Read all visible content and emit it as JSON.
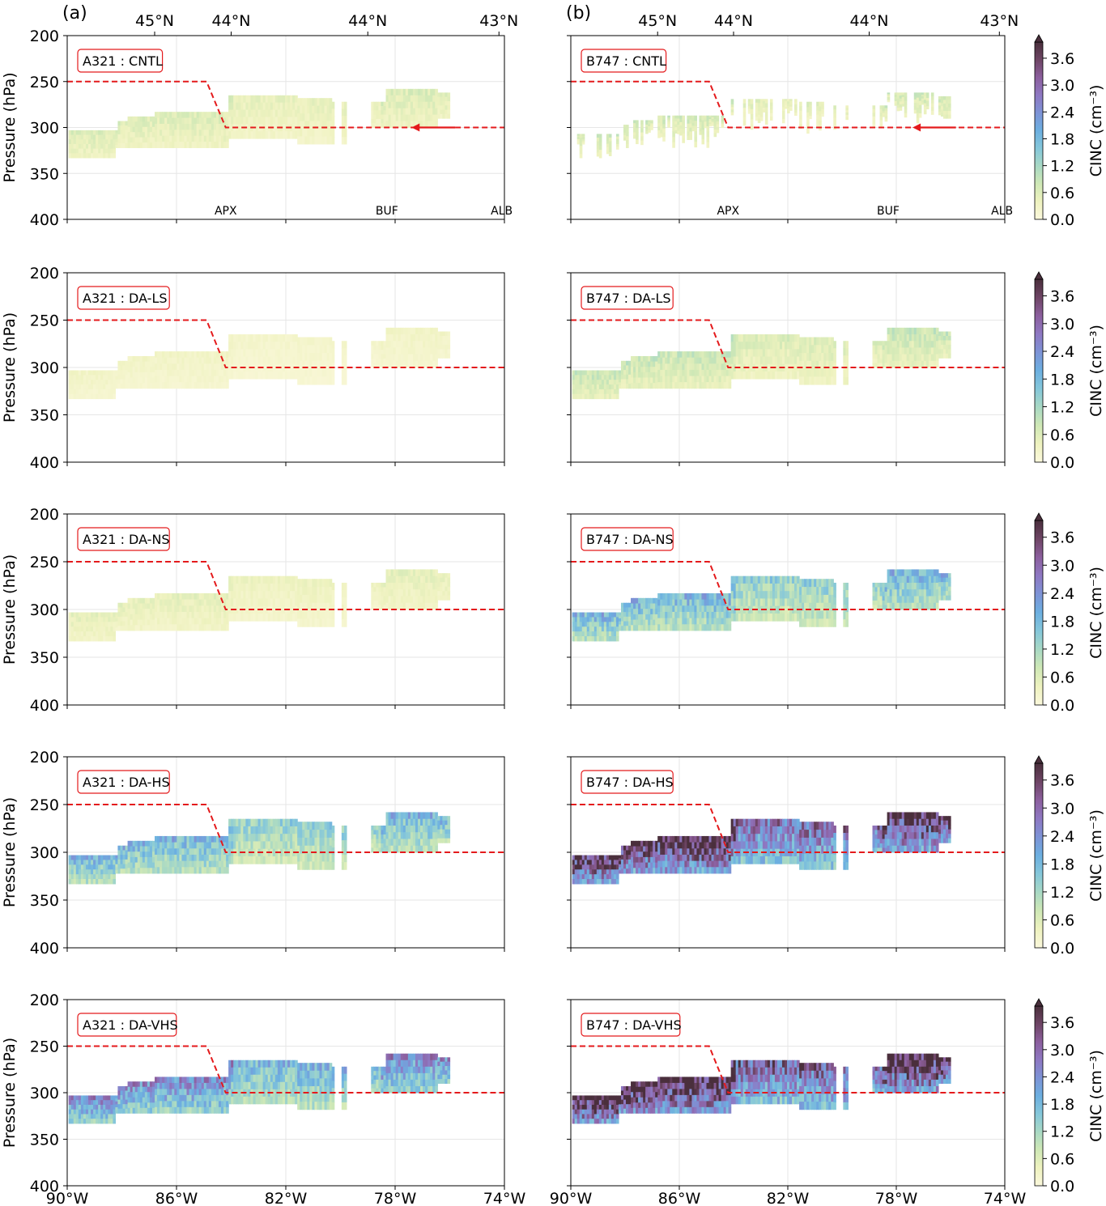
{
  "figure": {
    "panel_labels": [
      "(a)",
      "(b)"
    ],
    "top_axis_labels": [
      "45°N",
      "44°N",
      "44°N",
      "43°N"
    ],
    "bottom_axis_labels": [
      "90°W",
      "86°W",
      "82°W",
      "78°W",
      "74°W"
    ],
    "ylabel": "Pressure (hPa)",
    "yticks": [
      "200",
      "250",
      "300",
      "350",
      "400"
    ],
    "stations": [
      "APX",
      "BUF",
      "ALB"
    ],
    "colorbar": {
      "label": "CINC (cm⁻³)",
      "ticks": [
        "0.0",
        "0.6",
        "1.2",
        "1.8",
        "2.4",
        "3.0",
        "3.6"
      ],
      "colors": [
        "#fbf8dc",
        "#eef2bf",
        "#cfe8b6",
        "#a9d9c4",
        "#85c7da",
        "#6cafe0",
        "#7d93d6",
        "#8e78c2",
        "#8c5f9e",
        "#6e4565",
        "#4a2f3c"
      ]
    }
  },
  "chart_data": [
    {
      "type": "heatmap",
      "title": "A321 : CNTL",
      "xlabel": "",
      "ylabel": "Pressure (hPa)",
      "xlim": [
        "90°W",
        "74°W"
      ],
      "ylim": [
        400,
        200
      ],
      "intensity": 0.15,
      "sparse": false,
      "arrow": true,
      "grid": true
    },
    {
      "type": "heatmap",
      "title": "B747 : CNTL",
      "xlabel": "",
      "ylabel": "",
      "xlim": [
        "90°W",
        "74°W"
      ],
      "ylim": [
        400,
        200
      ],
      "intensity": 0.18,
      "sparse": true,
      "arrow": true,
      "grid": true
    },
    {
      "type": "heatmap",
      "title": "A321 : DA-LS",
      "xlabel": "",
      "ylabel": "Pressure (hPa)",
      "xlim": [
        "90°W",
        "74°W"
      ],
      "ylim": [
        400,
        200
      ],
      "intensity": 0.07,
      "sparse": false,
      "arrow": false,
      "grid": true
    },
    {
      "type": "heatmap",
      "title": "B747 : DA-LS",
      "xlabel": "",
      "ylabel": "",
      "xlim": [
        "90°W",
        "74°W"
      ],
      "ylim": [
        400,
        200
      ],
      "intensity": 0.2,
      "sparse": false,
      "arrow": false,
      "grid": true
    },
    {
      "type": "heatmap",
      "title": "A321 : DA-NS",
      "xlabel": "",
      "ylabel": "Pressure (hPa)",
      "xlim": [
        "90°W",
        "74°W"
      ],
      "ylim": [
        400,
        200
      ],
      "intensity": 0.12,
      "sparse": false,
      "arrow": false,
      "grid": true
    },
    {
      "type": "heatmap",
      "title": "B747 : DA-NS",
      "xlabel": "",
      "ylabel": "",
      "xlim": [
        "90°W",
        "74°W"
      ],
      "ylim": [
        400,
        200
      ],
      "intensity": 0.45,
      "sparse": false,
      "arrow": false,
      "grid": true
    },
    {
      "type": "heatmap",
      "title": "A321 : DA-HS",
      "xlabel": "",
      "ylabel": "Pressure (hPa)",
      "xlim": [
        "90°W",
        "74°W"
      ],
      "ylim": [
        400,
        200
      ],
      "intensity": 0.45,
      "sparse": false,
      "arrow": false,
      "grid": true
    },
    {
      "type": "heatmap",
      "title": "B747 : DA-HS",
      "xlabel": "",
      "ylabel": "",
      "xlim": [
        "90°W",
        "74°W"
      ],
      "ylim": [
        400,
        200
      ],
      "intensity": 0.95,
      "sparse": false,
      "arrow": false,
      "grid": true
    },
    {
      "type": "heatmap",
      "title": "A321 : DA-VHS",
      "xlabel": "90°W … 74°W",
      "ylabel": "Pressure (hPa)",
      "xlim": [
        "90°W",
        "74°W"
      ],
      "ylim": [
        400,
        200
      ],
      "intensity": 0.6,
      "sparse": false,
      "arrow": false,
      "grid": true
    },
    {
      "type": "heatmap",
      "title": "B747 : DA-VHS",
      "xlabel": "90°W … 74°W",
      "ylabel": "",
      "xlim": [
        "90°W",
        "74°W"
      ],
      "ylim": [
        400,
        200
      ],
      "intensity": 1.0,
      "sparse": false,
      "arrow": false,
      "grid": true
    }
  ],
  "flight_path": {
    "lon": [
      -90,
      -84.9,
      -84.2,
      -74
    ],
    "pressure": [
      250,
      250,
      300,
      300
    ]
  }
}
